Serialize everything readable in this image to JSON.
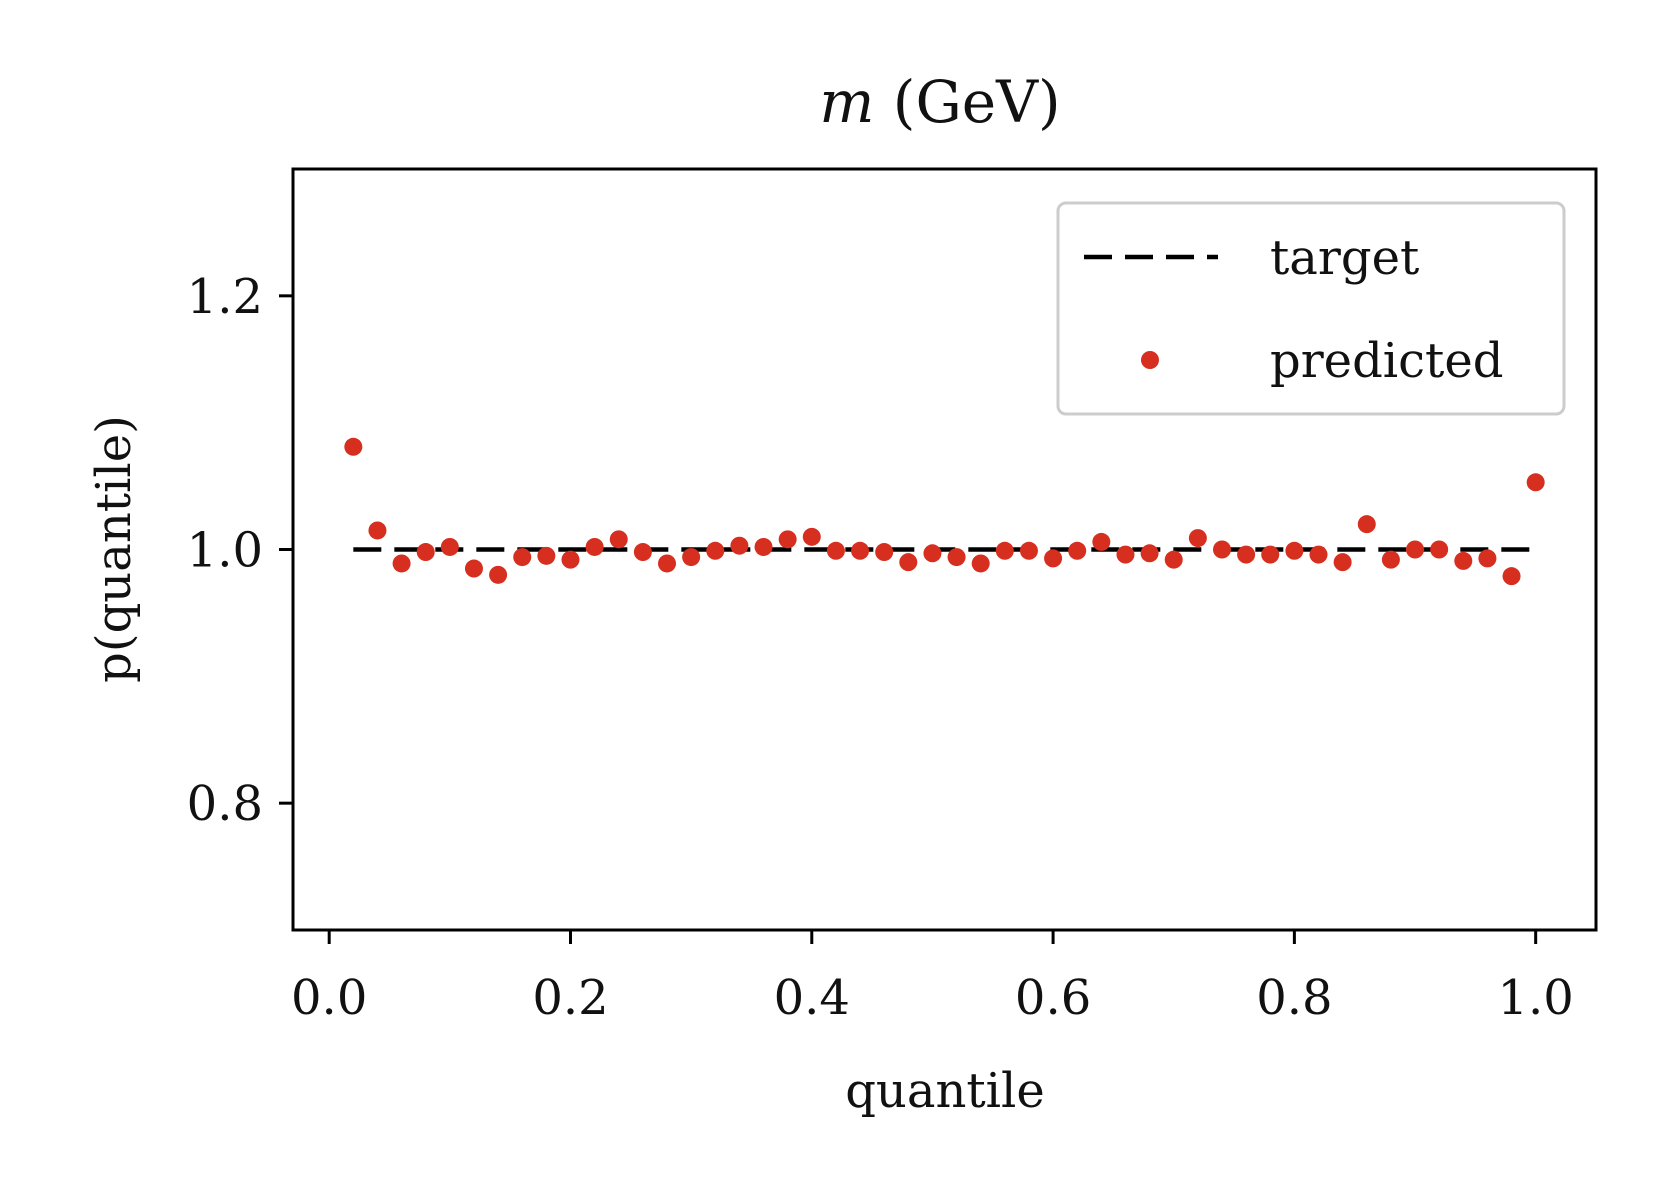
{
  "chart_data": {
    "type": "scatter",
    "title_var": "m",
    "title_rest": " (GeV)",
    "xlabel": "quantile",
    "ylabel": "p(quantile)",
    "xlim": [
      -0.03,
      1.05
    ],
    "ylim": [
      0.7,
      1.3
    ],
    "xticks": [
      0.0,
      0.2,
      0.4,
      0.6,
      0.8,
      1.0
    ],
    "xtick_labels": [
      "0.0",
      "0.2",
      "0.4",
      "0.6",
      "0.8",
      "1.0"
    ],
    "yticks": [
      0.8,
      1.0,
      1.2
    ],
    "ytick_labels": [
      "0.8",
      "1.0",
      "1.2"
    ],
    "legend_position": "top-right",
    "target": {
      "name": "target",
      "x": [
        0.02,
        1.0
      ],
      "y": [
        1.0,
        1.0
      ],
      "color": "#000000"
    },
    "predicted": {
      "name": "predicted",
      "color": "#d62f1f",
      "x": [
        0.02,
        0.04,
        0.06,
        0.08,
        0.1,
        0.12,
        0.14,
        0.16,
        0.18,
        0.2,
        0.22,
        0.24,
        0.26,
        0.28,
        0.3,
        0.32,
        0.34,
        0.36,
        0.38,
        0.4,
        0.42,
        0.44,
        0.46,
        0.48,
        0.5,
        0.52,
        0.54,
        0.56,
        0.58,
        0.6,
        0.62,
        0.64,
        0.66,
        0.68,
        0.7,
        0.72,
        0.74,
        0.76,
        0.78,
        0.8,
        0.82,
        0.84,
        0.86,
        0.88,
        0.9,
        0.92,
        0.94,
        0.96,
        0.98,
        1.0
      ],
      "y": [
        1.081,
        1.015,
        0.989,
        0.998,
        1.002,
        0.985,
        0.98,
        0.994,
        0.995,
        0.992,
        1.002,
        1.008,
        0.998,
        0.989,
        0.994,
        0.999,
        1.003,
        1.002,
        1.008,
        1.01,
        0.999,
        0.999,
        0.998,
        0.99,
        0.997,
        0.994,
        0.989,
        0.999,
        0.999,
        0.993,
        0.999,
        1.006,
        0.996,
        0.997,
        0.992,
        1.009,
        1.0,
        0.996,
        0.996,
        0.999,
        0.996,
        0.99,
        1.02,
        0.992,
        1.0,
        1.0,
        0.991,
        0.993,
        0.979,
        1.053
      ]
    }
  }
}
